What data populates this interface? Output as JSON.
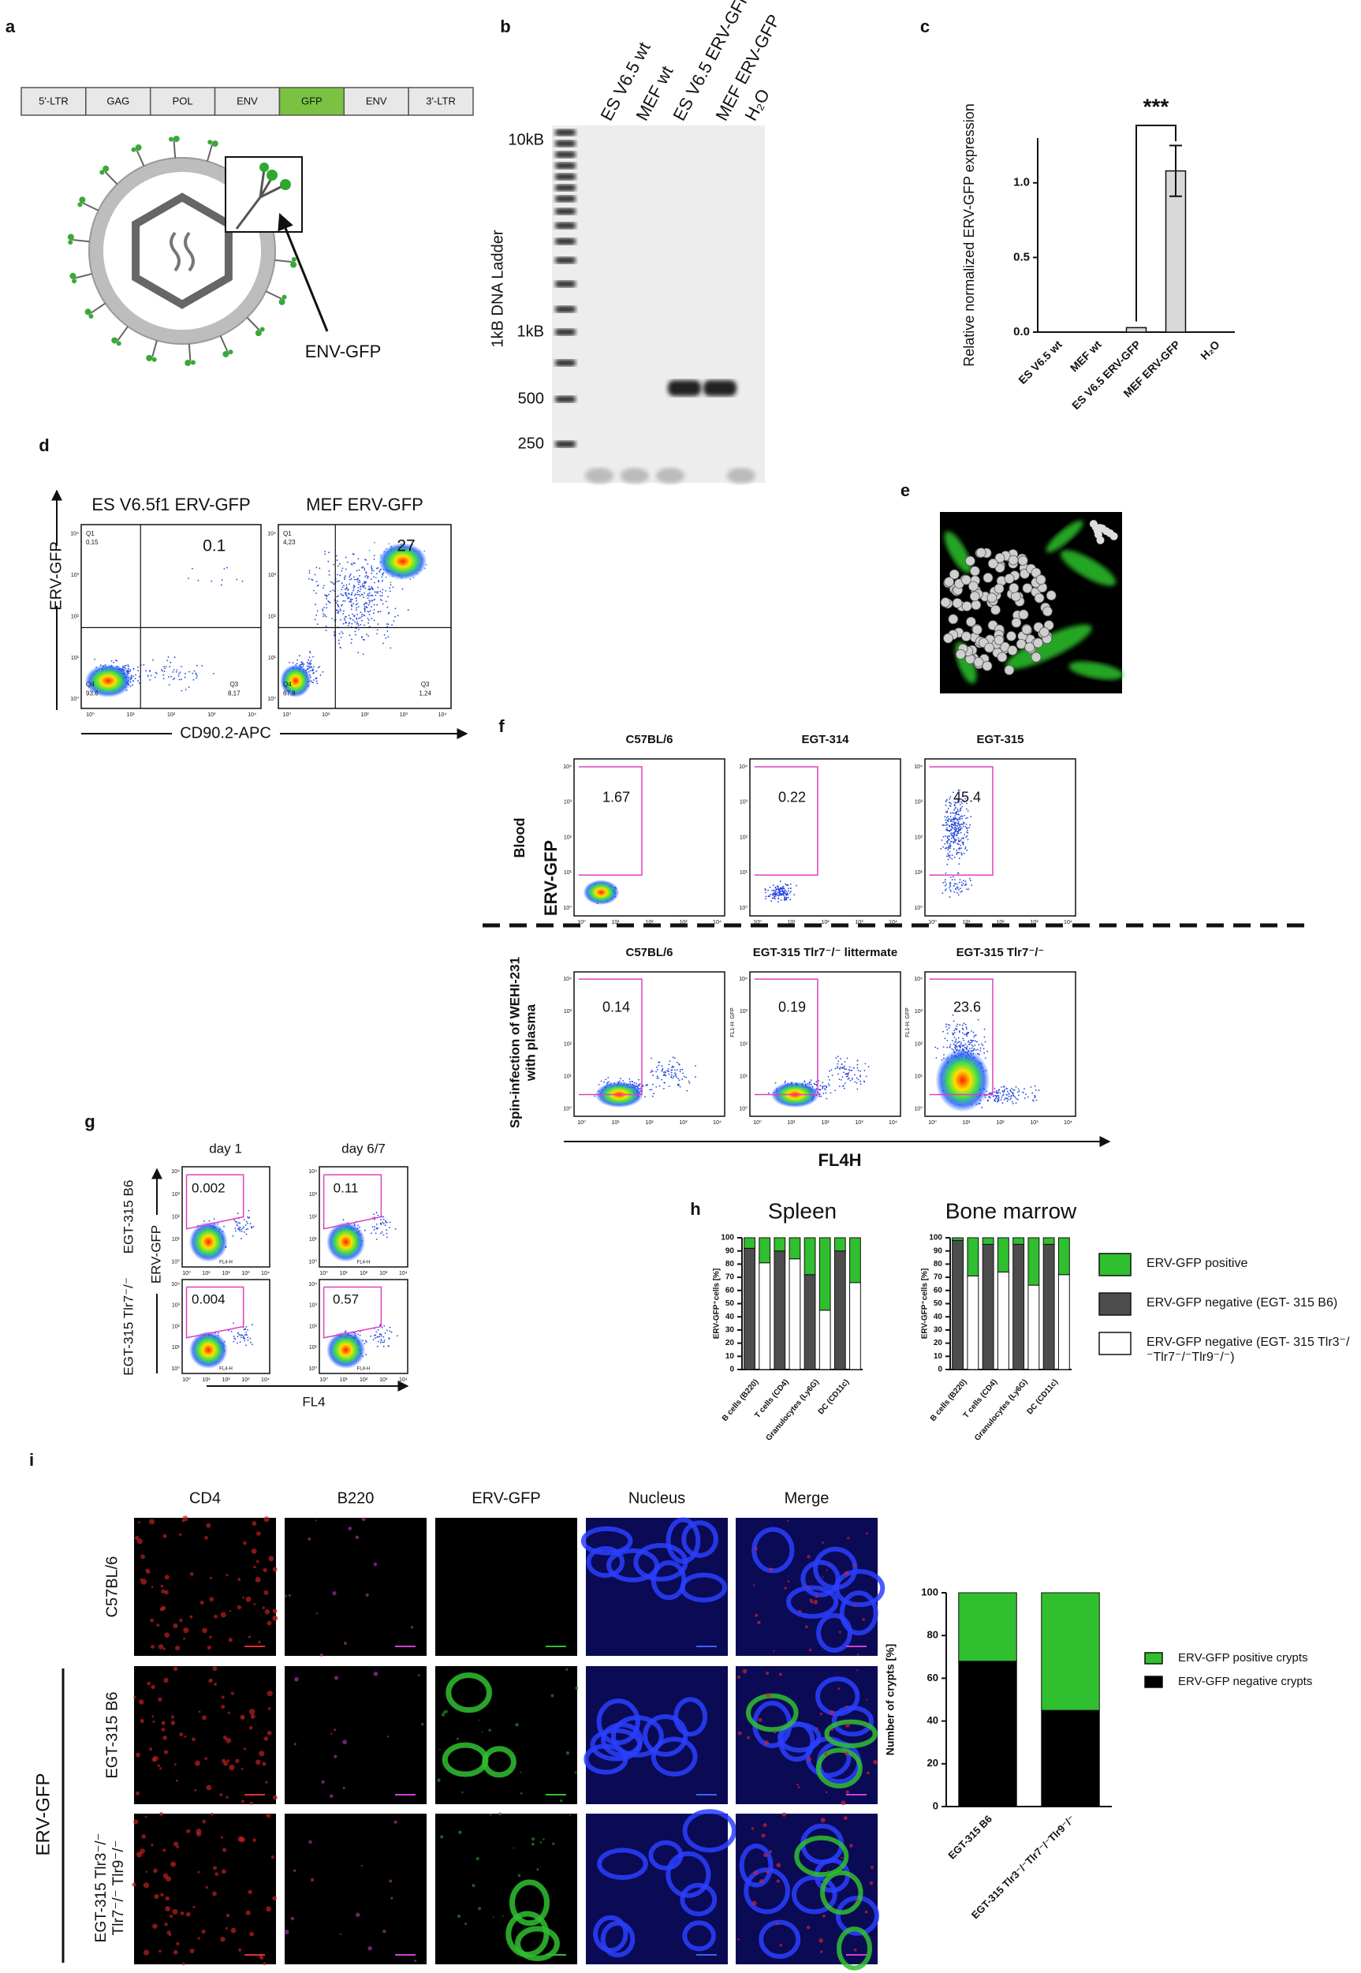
{
  "panels": {
    "a": {
      "label": "a",
      "construct": [
        "5'-LTR",
        "GAG",
        "POL",
        "ENV",
        "GFP",
        "ENV",
        "3'-LTR"
      ],
      "annotation": "ENV-GFP"
    },
    "b": {
      "label": "b",
      "ladder_title": "1kB DNA Ladder",
      "ladder_marks": [
        "10kB",
        "1kB",
        "500",
        "250"
      ],
      "lanes": [
        "ES V6.5 wt",
        "MEF wt",
        "ES V6.5 ERV-GFP",
        "MEF ERV-GFP",
        "H₂O"
      ]
    },
    "c": {
      "label": "c"
    },
    "d": {
      "label": "d",
      "y_label": "ERV-GFP",
      "x_label": "CD90.2-APC",
      "plots": [
        {
          "title": "ES V6.5f1 ERV-GFP",
          "q1": "Q1",
          "q1_value": "0,15",
          "gate_value": "0.1",
          "q3": "Q3",
          "q3_value": "8,17",
          "q4": "Q4",
          "q4_value": "93,6"
        },
        {
          "title": "MEF ERV-GFP",
          "q1": "Q1",
          "q1_value": "4,23",
          "gate_value": "27",
          "q3": "Q3",
          "q3_value": "1,24",
          "q4": "Q4",
          "q4_value": "67,8"
        }
      ]
    },
    "flow_ticks": [
      "10⁰",
      "10¹",
      "10²",
      "10³",
      "10⁴"
    ],
    "e": {
      "label": "e"
    },
    "f": {
      "label": "f",
      "y_label": "ERV-GFP",
      "x_label": "FL4H",
      "axis_note": "FL1-H: GFP",
      "rows": [
        {
          "label": "Blood",
          "plots": [
            {
              "title": "C57BL/6",
              "value": "1.67"
            },
            {
              "title": "EGT-314",
              "value": "0.22"
            },
            {
              "title": "EGT-315",
              "value": "45.4"
            }
          ]
        },
        {
          "label": "Spin-infection of WEHI-231 with plasma",
          "plots": [
            {
              "title": "C57BL/6",
              "value": "0.14"
            },
            {
              "title": "EGT-315 Tlr7⁻/⁻ littermate",
              "value": "0.19"
            },
            {
              "title": "EGT-315 Tlr7⁻/⁻",
              "value": "23.6"
            }
          ]
        }
      ]
    },
    "g": {
      "label": "g",
      "y_label": "ERV-GFP",
      "x_label": "FL4",
      "axis_note": "FL4-H",
      "columns": [
        "day 1",
        "day 6/7"
      ],
      "rows": [
        {
          "label": "EGT-315 B6",
          "values": [
            "0.002",
            "0.11"
          ]
        },
        {
          "label": "EGT-315 Tlr7⁻/⁻",
          "values": [
            "0.004",
            "0.57"
          ]
        }
      ]
    },
    "h": {
      "label": "h"
    },
    "i": {
      "label": "i",
      "columns": [
        "CD4",
        "B220",
        "ERV-GFP",
        "Nucleus",
        "Merge"
      ],
      "rows": [
        "C57BL/6",
        "EGT-315 B6",
        "EGT-315 Tlr3⁻/⁻ Tlr7⁻/⁻ Tlr9⁻/⁻"
      ],
      "group_label": "ERV-GFP"
    }
  },
  "chart_data": [
    {
      "type": "bar",
      "ylabel": "Relative normalized ERV-GFP expression",
      "categories": [
        "ES V6.5 wt",
        "MEF wt",
        "ES V6.5 ERV-GFP",
        "MEF ERV-GFP",
        "H₂O"
      ],
      "values": [
        0,
        0,
        0.03,
        1.08,
        0
      ],
      "errors": [
        0,
        0,
        0,
        0.17,
        0
      ],
      "color": "#d9d9d9",
      "ylim": [
        0,
        1.3
      ],
      "yticks": [
        {
          "value": 0,
          "label": "0.0"
        },
        {
          "value": 0.5,
          "label": "0.5"
        },
        {
          "value": 1,
          "label": "1.0"
        }
      ],
      "annotation": "***"
    },
    {
      "type": "stacked_bar",
      "title": "Spleen",
      "ylabel": "ERV-GFP⁺cells [%]",
      "categories": [
        "B cells (B220)",
        null,
        "T cells (CD4)",
        null,
        "Granulocytes (Ly6G)",
        null,
        "DC (CD11c)",
        null
      ],
      "series": [
        {
          "name": "ERV-GFP negative (EGT- 315 Tlr3⁻/⁻Tlr7⁻/⁻Tlr9⁻/⁻)",
          "color": "#ffffff",
          "values": [
            null,
            81,
            null,
            84,
            null,
            45,
            null,
            66
          ]
        },
        {
          "name": "ERV-GFP negative (EGT- 315 B6)",
          "color": "#4d4d4d",
          "values": [
            92,
            null,
            90,
            null,
            72,
            null,
            90,
            null
          ]
        },
        {
          "name": "ERV-GFP positive",
          "color": "#2fbf2f",
          "values": [
            8,
            19,
            10,
            16,
            28,
            55,
            10,
            34
          ]
        }
      ],
      "ylim": [
        0,
        100
      ],
      "yticks": [
        0,
        10,
        20,
        30,
        40,
        50,
        60,
        70,
        80,
        90,
        100
      ]
    },
    {
      "type": "stacked_bar",
      "title": "Bone marrow",
      "ylabel": "ERV-GFP⁺cells [%]",
      "categories": [
        "B cells (B220)",
        null,
        "T cells (CD4)",
        null,
        "Granulocytes (Ly6G)",
        null,
        "DC (CD11c)",
        null
      ],
      "series": [
        {
          "color": "#ffffff",
          "values": [
            null,
            71,
            null,
            74,
            null,
            64,
            null,
            72
          ]
        },
        {
          "color": "#4d4d4d",
          "values": [
            98,
            null,
            95,
            null,
            95,
            null,
            95,
            null
          ]
        },
        {
          "color": "#2fbf2f",
          "values": [
            2,
            29,
            5,
            26,
            5,
            36,
            5,
            28
          ]
        }
      ],
      "ylim": [
        0,
        100
      ],
      "yticks": [
        0,
        10,
        20,
        30,
        40,
        50,
        60,
        70,
        80,
        90,
        100
      ]
    },
    {
      "type": "stacked_bar",
      "ylabel": "Number of crypts [%]",
      "categories": [
        "EGT-315 B6",
        "EGT-315 Tlr3⁻/⁻Tlr7⁻/⁻Tlr9⁻/⁻"
      ],
      "series": [
        {
          "name": "ERV-GFP negative crypts",
          "color": "#000000",
          "values": [
            68,
            45
          ]
        },
        {
          "name": "ERV-GFP positive crypts",
          "color": "#2fbf2f",
          "values": [
            32,
            55
          ]
        }
      ],
      "ylim": [
        0,
        100
      ],
      "yticks": [
        0,
        20,
        40,
        60,
        80,
        100
      ]
    }
  ]
}
